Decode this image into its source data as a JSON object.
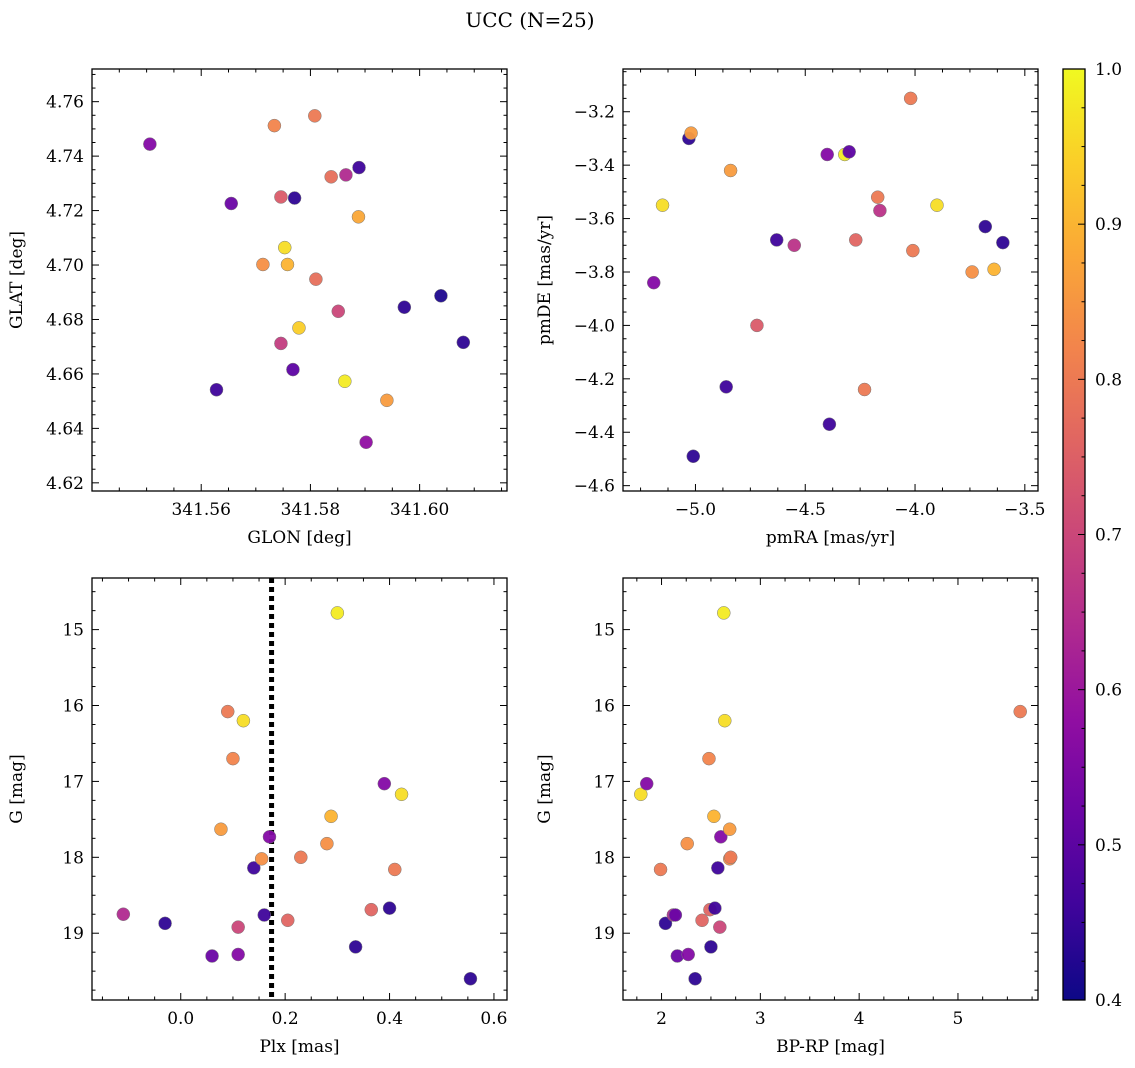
{
  "suptitle": "UCC (N=25)",
  "colorbar": {
    "range": [
      0.4,
      1.0
    ],
    "ticks": [
      0.4,
      0.5,
      0.6,
      0.7,
      0.8,
      0.9,
      1.0
    ],
    "tick_labels": [
      "0.4",
      "0.5",
      "0.6",
      "0.7",
      "0.8",
      "0.9",
      "1.0"
    ],
    "colormap": "plasma"
  },
  "chart_data": [
    {
      "type": "scatter",
      "xlabel": "GLON [deg]",
      "ylabel": "GLAT [deg]",
      "xlim": [
        341.54,
        341.616
      ],
      "ylim": [
        4.617,
        4.772
      ],
      "xticks": [
        341.56,
        341.58,
        341.6
      ],
      "xtick_labels": [
        "341.56",
        "341.58",
        "341.60"
      ],
      "yticks": [
        4.62,
        4.64,
        4.66,
        4.68,
        4.7,
        4.72,
        4.74,
        4.76
      ],
      "ytick_labels": [
        "4.62",
        "4.64",
        "4.66",
        "4.68",
        "4.70",
        "4.72",
        "4.74",
        "4.76"
      ],
      "inverted_y": false,
      "x": [
        341.5506,
        341.5628,
        341.5655,
        341.5713,
        341.5734,
        341.5746,
        341.5746,
        341.5753,
        341.5758,
        341.5768,
        341.5771,
        341.5779,
        341.5808,
        341.581,
        341.5838,
        341.5851,
        341.5863,
        341.5865,
        341.5888,
        341.5889,
        341.5902,
        341.594,
        341.5972,
        341.6039,
        341.608
      ],
      "y": [
        4.7444,
        4.6542,
        4.7226,
        4.7002,
        4.7512,
        4.6712,
        4.725,
        4.7064,
        4.7002,
        4.6616,
        4.7246,
        4.6769,
        4.7548,
        4.6948,
        4.7324,
        4.683,
        4.6573,
        4.7331,
        4.7177,
        4.7358,
        4.6349,
        4.6503,
        4.6845,
        4.6887,
        4.6716
      ],
      "c": [
        0.56,
        0.46,
        0.52,
        0.84,
        0.82,
        0.68,
        0.74,
        0.96,
        0.9,
        0.5,
        0.44,
        0.94,
        0.8,
        0.78,
        0.78,
        0.7,
        0.98,
        0.64,
        0.88,
        0.46,
        0.58,
        0.86,
        0.44,
        0.42,
        0.44
      ]
    },
    {
      "type": "scatter",
      "xlabel": "pmRA [mas/yr]",
      "ylabel": "pmDE [mas/yr]",
      "xlim": [
        -5.33,
        -3.44
      ],
      "ylim": [
        -4.62,
        -3.04
      ],
      "xticks": [
        -5.0,
        -4.5,
        -4.0,
        -3.5
      ],
      "xtick_labels": [
        "−5.0",
        "−4.5",
        "−4.0",
        "−3.5"
      ],
      "yticks": [
        -4.6,
        -4.4,
        -4.2,
        -4.0,
        -3.8,
        -3.6,
        -3.4,
        -3.2
      ],
      "ytick_labels": [
        "−4.6",
        "−4.4",
        "−4.2",
        "−4.0",
        "−3.8",
        "−3.6",
        "−3.4",
        "−3.2"
      ],
      "inverted_y": false,
      "x": [
        -5.19,
        -5.15,
        -5.03,
        -5.02,
        -5.01,
        -4.86,
        -4.84,
        -4.72,
        -4.63,
        -4.55,
        -4.4,
        -4.39,
        -4.32,
        -4.3,
        -4.27,
        -4.23,
        -4.17,
        -4.16,
        -4.02,
        -4.01,
        -3.9,
        -3.74,
        -3.68,
        -3.64,
        -3.6
      ],
      "y": [
        -3.84,
        -3.55,
        -3.3,
        -3.28,
        -4.49,
        -4.23,
        -3.42,
        -4.0,
        -3.68,
        -3.7,
        -3.36,
        -4.37,
        -3.36,
        -3.35,
        -3.68,
        -4.24,
        -3.52,
        -3.57,
        -3.15,
        -3.72,
        -3.55,
        -3.8,
        -3.63,
        -3.79,
        -3.69
      ],
      "c": [
        0.56,
        0.96,
        0.44,
        0.86,
        0.44,
        0.46,
        0.86,
        0.74,
        0.46,
        0.66,
        0.56,
        0.46,
        0.98,
        0.5,
        0.76,
        0.8,
        0.8,
        0.66,
        0.8,
        0.8,
        0.96,
        0.84,
        0.44,
        0.9,
        0.44
      ]
    },
    {
      "type": "scatter",
      "xlabel": "Plx [mas]",
      "ylabel": "G [mag]",
      "xlim": [
        -0.17,
        0.625
      ],
      "ylim": [
        19.88,
        14.32
      ],
      "xticks": [
        0.0,
        0.2,
        0.4,
        0.6
      ],
      "xtick_labels": [
        "0.0",
        "0.2",
        "0.4",
        "0.6"
      ],
      "yticks": [
        15,
        16,
        17,
        18,
        19
      ],
      "ytick_labels": [
        "15",
        "16",
        "17",
        "18",
        "19"
      ],
      "inverted_y": true,
      "vline": 0.174,
      "x": [
        -0.11,
        -0.03,
        0.06,
        0.077,
        0.09,
        0.1,
        0.11,
        0.11,
        0.12,
        0.14,
        0.155,
        0.16,
        0.17,
        0.205,
        0.23,
        0.28,
        0.288,
        0.3,
        0.335,
        0.365,
        0.39,
        0.4,
        0.41,
        0.423,
        0.555
      ],
      "y": [
        18.75,
        18.87,
        19.3,
        17.63,
        16.08,
        16.7,
        18.92,
        19.28,
        16.2,
        18.14,
        18.02,
        18.76,
        17.73,
        18.83,
        18.0,
        17.82,
        17.46,
        14.78,
        19.18,
        18.69,
        17.03,
        18.67,
        18.16,
        17.17,
        19.6
      ],
      "c": [
        0.64,
        0.44,
        0.52,
        0.86,
        0.8,
        0.82,
        0.7,
        0.56,
        0.96,
        0.46,
        0.84,
        0.46,
        0.56,
        0.76,
        0.8,
        0.84,
        0.9,
        0.98,
        0.44,
        0.76,
        0.56,
        0.44,
        0.8,
        0.96,
        0.44
      ]
    },
    {
      "type": "scatter",
      "xlabel": "BP-RP [mag]",
      "ylabel": "G [mag]",
      "xlim": [
        1.61,
        5.81
      ],
      "ylim": [
        19.88,
        14.32
      ],
      "xticks": [
        2,
        3,
        4,
        5
      ],
      "xtick_labels": [
        "2",
        "3",
        "4",
        "5"
      ],
      "yticks": [
        15,
        16,
        17,
        18,
        19
      ],
      "ytick_labels": [
        "15",
        "16",
        "17",
        "18",
        "19"
      ],
      "inverted_y": true,
      "x": [
        1.79,
        1.85,
        1.99,
        2.04,
        2.12,
        2.14,
        2.16,
        2.26,
        2.27,
        2.34,
        2.41,
        2.48,
        2.49,
        2.5,
        2.53,
        2.54,
        2.57,
        2.59,
        2.6,
        2.63,
        2.64,
        2.69,
        2.69,
        2.7,
        5.63
      ],
      "y": [
        17.17,
        17.03,
        18.16,
        18.87,
        18.76,
        18.76,
        19.3,
        17.82,
        19.28,
        19.6,
        18.83,
        16.7,
        18.69,
        19.18,
        17.46,
        18.67,
        18.14,
        18.92,
        17.73,
        14.78,
        16.2,
        18.02,
        17.63,
        18.0,
        16.08
      ],
      "c": [
        0.96,
        0.56,
        0.8,
        0.44,
        0.64,
        0.52,
        0.52,
        0.84,
        0.56,
        0.44,
        0.76,
        0.82,
        0.76,
        0.44,
        0.9,
        0.46,
        0.46,
        0.7,
        0.56,
        0.98,
        0.96,
        0.84,
        0.86,
        0.8,
        0.8
      ]
    }
  ]
}
